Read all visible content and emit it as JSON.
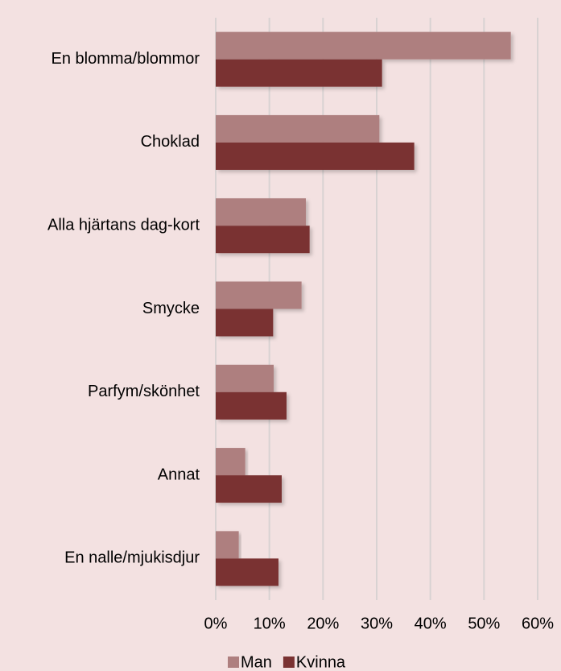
{
  "chart_data": {
    "type": "barh",
    "categories": [
      "En blomma/blommor",
      "Choklad",
      "Alla hjärtans dag-kort",
      "Smycke",
      "Parfym/skönhet",
      "Annat",
      "En nalle/mjukisdjur"
    ],
    "series": [
      {
        "name": "Man",
        "color": "#ae7f7f",
        "values": [
          55,
          30.5,
          16.8,
          16,
          10.8,
          5.5,
          4.3
        ]
      },
      {
        "name": "Kvinna",
        "color": "#7a3232",
        "values": [
          31,
          37,
          17.5,
          10.7,
          13.2,
          12.3,
          11.7
        ]
      }
    ],
    "xlim": [
      0,
      60
    ],
    "xticks": [
      {
        "value": 0,
        "label": "0%"
      },
      {
        "value": 10,
        "label": "10%"
      },
      {
        "value": 20,
        "label": "20%"
      },
      {
        "value": 30,
        "label": "30%"
      },
      {
        "value": 40,
        "label": "40%"
      },
      {
        "value": 50,
        "label": "50%"
      },
      {
        "value": 60,
        "label": "60%"
      }
    ],
    "grid": true,
    "legend": "bottom"
  }
}
